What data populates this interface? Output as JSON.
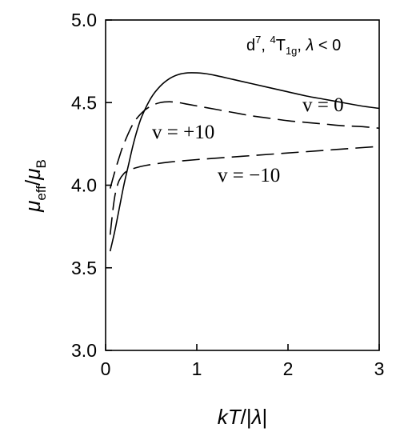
{
  "chart_data": {
    "type": "line",
    "xlabel": {
      "pre": "kT",
      "sep": "/|",
      "mid": "λ",
      "post": "|"
    },
    "ylabel": {
      "mu1": "μ",
      "sub1": "eff",
      "slash": "/",
      "mu2": "μ",
      "sub2": "B"
    },
    "xlim": [
      0,
      3
    ],
    "ylim": [
      3.0,
      5.0
    ],
    "xticks": [
      "0",
      "1",
      "2",
      "3"
    ],
    "yticks": [
      "3.0",
      "3.5",
      "4.0",
      "4.5",
      "5.0"
    ],
    "legend_text": {
      "config": "d",
      "config_sup": "7",
      "term_sup": "4",
      "term": "T",
      "term_sub": "1g",
      "rest": ", ",
      "lambda": "λ",
      "cond": " < 0"
    },
    "series": [
      {
        "label": "v = 0",
        "dash": "solid",
        "x": [
          0.05,
          0.1,
          0.15,
          0.2,
          0.25,
          0.3,
          0.35,
          0.4,
          0.5,
          0.6,
          0.7,
          0.8,
          0.9,
          1.0,
          1.1,
          1.2,
          1.4,
          1.6,
          1.8,
          2.0,
          2.2,
          2.4,
          2.6,
          2.8,
          3.0
        ],
        "y": [
          3.6,
          3.72,
          3.86,
          4.0,
          4.12,
          4.24,
          4.34,
          4.42,
          4.53,
          4.6,
          4.645,
          4.67,
          4.68,
          4.68,
          4.675,
          4.665,
          4.64,
          4.615,
          4.59,
          4.565,
          4.54,
          4.52,
          4.5,
          4.48,
          4.465
        ]
      },
      {
        "label": "v = +10",
        "dash": "long",
        "x": [
          0.05,
          0.1,
          0.15,
          0.2,
          0.3,
          0.4,
          0.5,
          0.6,
          0.7,
          0.8,
          0.9,
          1.0,
          1.2,
          1.4,
          1.6,
          1.8,
          2.0,
          2.2,
          2.4,
          2.6,
          2.8,
          3.0
        ],
        "y": [
          3.98,
          4.08,
          4.17,
          4.25,
          4.37,
          4.44,
          4.48,
          4.5,
          4.505,
          4.5,
          4.49,
          4.48,
          4.46,
          4.44,
          4.42,
          4.405,
          4.39,
          4.38,
          4.37,
          4.36,
          4.355,
          4.345
        ]
      },
      {
        "label": "v = −10",
        "dash": "long",
        "x": [
          0.05,
          0.08,
          0.1,
          0.12,
          0.15,
          0.2,
          0.25,
          0.3,
          0.4,
          0.5,
          0.7,
          1.0,
          1.5,
          2.0,
          2.5,
          3.0
        ],
        "y": [
          3.7,
          3.85,
          3.93,
          3.98,
          4.03,
          4.07,
          4.09,
          4.1,
          4.115,
          4.125,
          4.14,
          4.155,
          4.175,
          4.195,
          4.215,
          4.235
        ]
      }
    ]
  }
}
